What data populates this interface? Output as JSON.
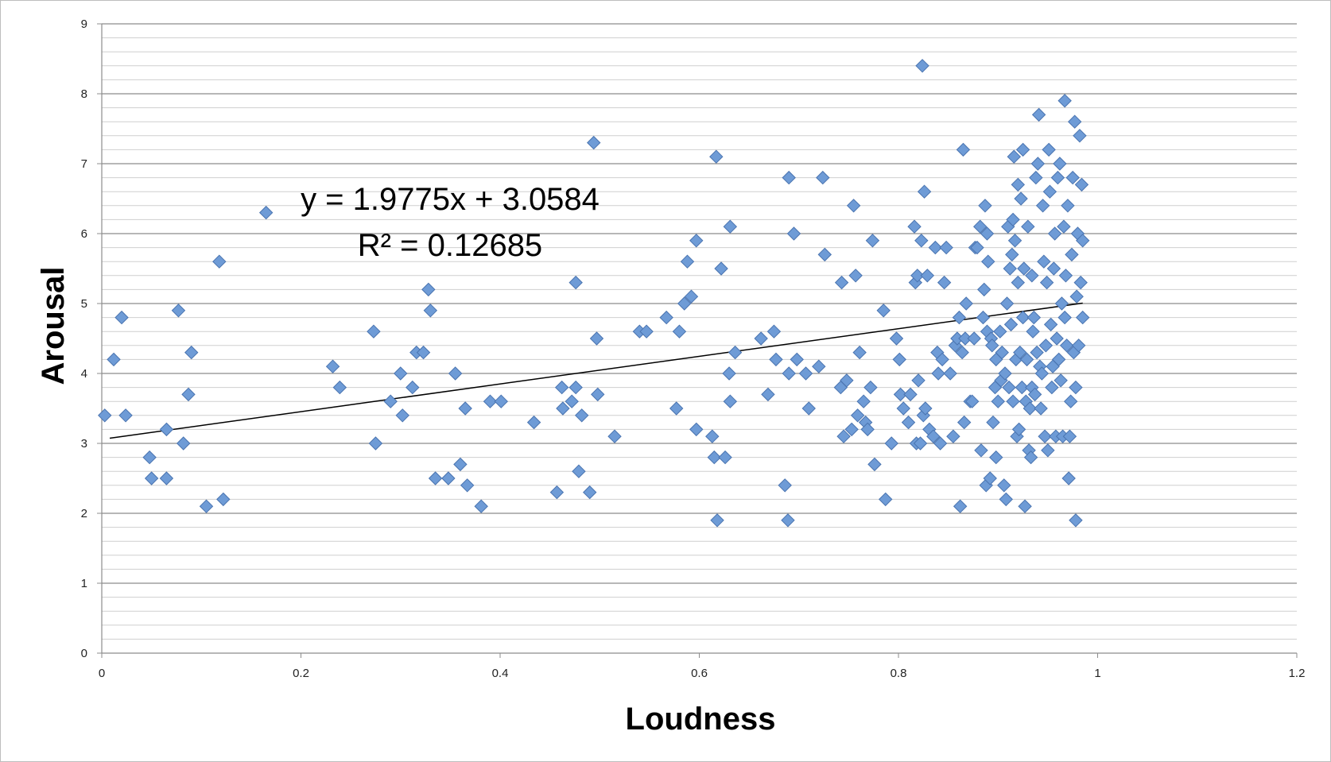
{
  "chart_data": {
    "type": "scatter",
    "xlabel": "Loudness",
    "ylabel": "Arousal",
    "xlim": [
      0,
      1.2
    ],
    "ylim": [
      0,
      9
    ],
    "x_ticks": [
      "0",
      "0.2",
      "0.4",
      "0.6",
      "0.8",
      "1",
      "1.2"
    ],
    "y_ticks": [
      "0",
      "1",
      "2",
      "3",
      "4",
      "5",
      "6",
      "7",
      "8",
      "9"
    ],
    "grid": "horizontal major and minor gridlines",
    "legend": "none",
    "marker": "diamond",
    "marker_color": "#6e9bd6",
    "trendline": {
      "type": "linear",
      "slope": 1.9775,
      "intercept": 3.0584,
      "x_range": [
        0.008,
        0.985
      ],
      "equation": "y = 1.9775x + 3.0584",
      "r_squared": "R² = 0.12685"
    },
    "series": [
      {
        "points": [
          [
            0.003,
            3.4
          ],
          [
            0.012,
            4.2
          ],
          [
            0.02,
            4.8
          ],
          [
            0.024,
            3.4
          ],
          [
            0.048,
            2.8
          ],
          [
            0.05,
            2.5
          ],
          [
            0.065,
            2.5
          ],
          [
            0.065,
            3.2
          ],
          [
            0.077,
            4.9
          ],
          [
            0.082,
            3.0
          ],
          [
            0.087,
            3.7
          ],
          [
            0.09,
            4.3
          ],
          [
            0.105,
            2.1
          ],
          [
            0.118,
            5.6
          ],
          [
            0.122,
            2.2
          ],
          [
            0.165,
            6.3
          ],
          [
            0.232,
            4.1
          ],
          [
            0.239,
            3.8
          ],
          [
            0.273,
            4.6
          ],
          [
            0.275,
            3.0
          ],
          [
            0.29,
            3.6
          ],
          [
            0.3,
            4.0
          ],
          [
            0.302,
            3.4
          ],
          [
            0.312,
            3.8
          ],
          [
            0.316,
            4.3
          ],
          [
            0.323,
            4.3
          ],
          [
            0.328,
            5.2
          ],
          [
            0.33,
            4.9
          ],
          [
            0.335,
            2.5
          ],
          [
            0.348,
            2.5
          ],
          [
            0.355,
            4.0
          ],
          [
            0.36,
            2.7
          ],
          [
            0.365,
            3.5
          ],
          [
            0.367,
            2.4
          ],
          [
            0.381,
            2.1
          ],
          [
            0.39,
            3.6
          ],
          [
            0.401,
            3.6
          ],
          [
            0.434,
            3.3
          ],
          [
            0.457,
            2.3
          ],
          [
            0.462,
            3.8
          ],
          [
            0.463,
            3.5
          ],
          [
            0.472,
            3.6
          ],
          [
            0.476,
            3.8
          ],
          [
            0.476,
            5.3
          ],
          [
            0.479,
            2.6
          ],
          [
            0.482,
            3.4
          ],
          [
            0.49,
            2.3
          ],
          [
            0.494,
            7.3
          ],
          [
            0.497,
            4.5
          ],
          [
            0.498,
            3.7
          ],
          [
            0.515,
            3.1
          ],
          [
            0.54,
            4.6
          ],
          [
            0.547,
            4.6
          ],
          [
            0.567,
            4.8
          ],
          [
            0.577,
            3.5
          ],
          [
            0.58,
            4.6
          ],
          [
            0.585,
            5.0
          ],
          [
            0.588,
            5.6
          ],
          [
            0.592,
            5.1
          ],
          [
            0.597,
            3.2
          ],
          [
            0.597,
            5.9
          ],
          [
            0.613,
            3.1
          ],
          [
            0.615,
            2.8
          ],
          [
            0.617,
            7.1
          ],
          [
            0.618,
            1.9
          ],
          [
            0.622,
            5.5
          ],
          [
            0.626,
            2.8
          ],
          [
            0.63,
            4.0
          ],
          [
            0.631,
            3.6
          ],
          [
            0.631,
            6.1
          ],
          [
            0.636,
            4.3
          ],
          [
            0.662,
            4.5
          ],
          [
            0.669,
            3.7
          ],
          [
            0.675,
            4.6
          ],
          [
            0.677,
            4.2
          ],
          [
            0.686,
            2.4
          ],
          [
            0.689,
            1.9
          ],
          [
            0.69,
            4.0
          ],
          [
            0.69,
            6.8
          ],
          [
            0.695,
            6.0
          ],
          [
            0.698,
            4.2
          ],
          [
            0.707,
            4.0
          ],
          [
            0.71,
            3.5
          ],
          [
            0.72,
            4.1
          ],
          [
            0.724,
            6.8
          ],
          [
            0.726,
            5.7
          ],
          [
            0.742,
            3.8
          ],
          [
            0.743,
            5.3
          ],
          [
            0.745,
            3.1
          ],
          [
            0.748,
            3.9
          ],
          [
            0.753,
            3.2
          ],
          [
            0.755,
            6.4
          ],
          [
            0.757,
            5.4
          ],
          [
            0.759,
            3.4
          ],
          [
            0.761,
            4.3
          ],
          [
            0.765,
            3.6
          ],
          [
            0.767,
            3.3
          ],
          [
            0.769,
            3.2
          ],
          [
            0.772,
            3.8
          ],
          [
            0.774,
            5.9
          ],
          [
            0.776,
            2.7
          ],
          [
            0.785,
            4.9
          ],
          [
            0.787,
            2.2
          ],
          [
            0.793,
            3.0
          ],
          [
            0.798,
            4.5
          ],
          [
            0.801,
            4.2
          ],
          [
            0.802,
            3.7
          ],
          [
            0.805,
            3.5
          ],
          [
            0.81,
            3.3
          ],
          [
            0.812,
            3.7
          ],
          [
            0.816,
            6.1
          ],
          [
            0.817,
            5.3
          ],
          [
            0.818,
            3.0
          ],
          [
            0.819,
            5.4
          ],
          [
            0.82,
            3.9
          ],
          [
            0.822,
            3.0
          ],
          [
            0.823,
            5.9
          ],
          [
            0.824,
            8.4
          ],
          [
            0.825,
            3.4
          ],
          [
            0.826,
            6.6
          ],
          [
            0.827,
            3.5
          ],
          [
            0.829,
            5.4
          ],
          [
            0.831,
            3.2
          ],
          [
            0.835,
            3.1
          ],
          [
            0.837,
            5.8
          ],
          [
            0.839,
            4.3
          ],
          [
            0.84,
            4.0
          ],
          [
            0.842,
            3.0
          ],
          [
            0.844,
            4.2
          ],
          [
            0.846,
            5.3
          ],
          [
            0.848,
            5.8
          ],
          [
            0.852,
            4.0
          ],
          [
            0.855,
            3.1
          ],
          [
            0.857,
            4.4
          ],
          [
            0.859,
            4.5
          ],
          [
            0.861,
            4.8
          ],
          [
            0.862,
            2.1
          ],
          [
            0.864,
            4.3
          ],
          [
            0.865,
            7.2
          ],
          [
            0.866,
            3.3
          ],
          [
            0.867,
            4.5
          ],
          [
            0.868,
            5.0
          ],
          [
            0.872,
            3.6
          ],
          [
            0.874,
            3.6
          ],
          [
            0.876,
            4.5
          ],
          [
            0.877,
            5.8
          ],
          [
            0.879,
            5.8
          ],
          [
            0.882,
            6.1
          ],
          [
            0.883,
            2.9
          ],
          [
            0.885,
            4.8
          ],
          [
            0.886,
            5.2
          ],
          [
            0.887,
            6.4
          ],
          [
            0.888,
            2.4
          ],
          [
            0.889,
            6.0
          ],
          [
            0.889,
            4.6
          ],
          [
            0.89,
            5.6
          ],
          [
            0.892,
            2.5
          ],
          [
            0.893,
            4.5
          ],
          [
            0.894,
            4.4
          ],
          [
            0.895,
            3.3
          ],
          [
            0.897,
            3.8
          ],
          [
            0.898,
            2.8
          ],
          [
            0.898,
            4.2
          ],
          [
            0.9,
            3.6
          ],
          [
            0.902,
            4.6
          ],
          [
            0.903,
            3.9
          ],
          [
            0.904,
            4.3
          ],
          [
            0.906,
            2.4
          ],
          [
            0.907,
            4.0
          ],
          [
            0.908,
            2.2
          ],
          [
            0.909,
            5.0
          ],
          [
            0.91,
            6.1
          ],
          [
            0.911,
            3.8
          ],
          [
            0.912,
            5.5
          ],
          [
            0.913,
            4.7
          ],
          [
            0.914,
            5.7
          ],
          [
            0.915,
            3.6
          ],
          [
            0.915,
            6.2
          ],
          [
            0.916,
            7.1
          ],
          [
            0.917,
            5.9
          ],
          [
            0.918,
            4.2
          ],
          [
            0.919,
            3.1
          ],
          [
            0.92,
            5.3
          ],
          [
            0.92,
            6.7
          ],
          [
            0.921,
            3.2
          ],
          [
            0.922,
            4.3
          ],
          [
            0.923,
            6.5
          ],
          [
            0.924,
            3.8
          ],
          [
            0.925,
            4.8
          ],
          [
            0.925,
            7.2
          ],
          [
            0.926,
            5.5
          ],
          [
            0.927,
            2.1
          ],
          [
            0.928,
            3.6
          ],
          [
            0.929,
            4.2
          ],
          [
            0.93,
            6.1
          ],
          [
            0.931,
            2.9
          ],
          [
            0.932,
            3.5
          ],
          [
            0.933,
            2.8
          ],
          [
            0.934,
            3.8
          ],
          [
            0.934,
            5.4
          ],
          [
            0.935,
            4.6
          ],
          [
            0.936,
            4.8
          ],
          [
            0.937,
            3.7
          ],
          [
            0.938,
            6.8
          ],
          [
            0.939,
            4.3
          ],
          [
            0.94,
            7.0
          ],
          [
            0.941,
            7.7
          ],
          [
            0.942,
            4.1
          ],
          [
            0.943,
            3.5
          ],
          [
            0.944,
            4.0
          ],
          [
            0.945,
            6.4
          ],
          [
            0.946,
            5.6
          ],
          [
            0.947,
            3.1
          ],
          [
            0.948,
            4.4
          ],
          [
            0.949,
            5.3
          ],
          [
            0.95,
            2.9
          ],
          [
            0.951,
            7.2
          ],
          [
            0.952,
            6.6
          ],
          [
            0.953,
            4.7
          ],
          [
            0.954,
            3.8
          ],
          [
            0.955,
            4.1
          ],
          [
            0.956,
            5.5
          ],
          [
            0.957,
            6.0
          ],
          [
            0.958,
            3.1
          ],
          [
            0.959,
            4.5
          ],
          [
            0.96,
            6.8
          ],
          [
            0.961,
            4.2
          ],
          [
            0.962,
            7.0
          ],
          [
            0.963,
            3.9
          ],
          [
            0.964,
            5.0
          ],
          [
            0.965,
            3.1
          ],
          [
            0.966,
            6.1
          ],
          [
            0.967,
            4.8
          ],
          [
            0.967,
            7.9
          ],
          [
            0.968,
            5.4
          ],
          [
            0.969,
            4.4
          ],
          [
            0.97,
            6.4
          ],
          [
            0.971,
            2.5
          ],
          [
            0.972,
            3.1
          ],
          [
            0.973,
            3.6
          ],
          [
            0.974,
            5.7
          ],
          [
            0.975,
            6.8
          ],
          [
            0.976,
            4.3
          ],
          [
            0.977,
            7.6
          ],
          [
            0.978,
            3.8
          ],
          [
            0.978,
            1.9
          ],
          [
            0.979,
            5.1
          ],
          [
            0.98,
            6.0
          ],
          [
            0.981,
            4.4
          ],
          [
            0.982,
            7.4
          ],
          [
            0.983,
            5.3
          ],
          [
            0.984,
            6.7
          ],
          [
            0.985,
            4.8
          ],
          [
            0.985,
            5.9
          ]
        ]
      }
    ]
  }
}
